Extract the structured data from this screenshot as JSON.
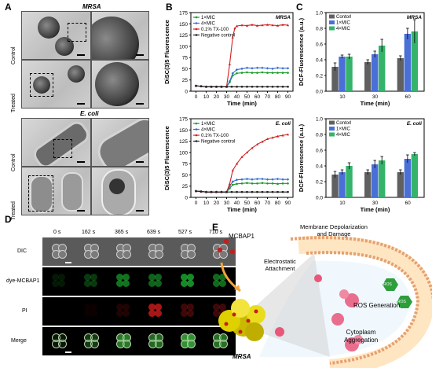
{
  "panels": {
    "A": "A",
    "B": "B",
    "C": "C",
    "D": "D",
    "E": "E"
  },
  "panelA": {
    "mrsa_title": "MRSA",
    "ecoli_title": "E. coli",
    "row_control": "Control",
    "row_treated": "Treated"
  },
  "panelD": {
    "times": [
      "0 s",
      "162 s",
      "365 s",
      "639 s",
      "527 s",
      "710 s"
    ],
    "rows": [
      "DIC",
      "dye-MCBAP1",
      "PI",
      "Merge"
    ]
  },
  "panelE": {
    "mcbap1": "MCBAP1",
    "membrane": "Membrane Depolarization\nand Damage",
    "electrostatic": "Electrostatic\nAttachment",
    "ros_gen": "ROS Generation",
    "ros1": "ROS",
    "ros2": "ROS",
    "cytoplasm": "Cytoplasm\nAggregation",
    "mrsa": "MRSA"
  },
  "colors": {
    "mic1": "#1a9c2a",
    "mic4": "#3b6fd1",
    "tx": "#d21f1f",
    "neg": "#222222",
    "bar_control": "#606060",
    "bar_1mic": "#4a6fd6",
    "bar_4mic": "#35b36a"
  },
  "chart_data": [
    {
      "type": "line",
      "tag": "MRSA",
      "xlabel": "Time (min)",
      "ylabel": "DiSC(3)5 Fluorescence",
      "xlim": [
        -5,
        95
      ],
      "ylim": [
        0,
        175
      ],
      "xticks": [
        0,
        10,
        20,
        30,
        40,
        50,
        60,
        70,
        80,
        90
      ],
      "yticks": [
        0,
        25,
        50,
        75,
        100,
        125,
        150,
        175
      ],
      "series": [
        {
          "name": "1×MIC",
          "color": "#1a9c2a",
          "marker": "circle",
          "x": [
            0,
            5,
            10,
            15,
            20,
            25,
            30,
            33,
            36,
            40,
            45,
            50,
            55,
            60,
            65,
            70,
            75,
            80,
            85,
            90
          ],
          "y": [
            12,
            11,
            10,
            10,
            10,
            10,
            10,
            20,
            35,
            40,
            41,
            42,
            41,
            41,
            42,
            41,
            41,
            41,
            41,
            41
          ]
        },
        {
          "name": "4×MIC",
          "color": "#3b6fd1",
          "marker": "diamond",
          "x": [
            0,
            5,
            10,
            15,
            20,
            25,
            30,
            33,
            36,
            40,
            45,
            50,
            55,
            60,
            65,
            70,
            75,
            80,
            85,
            90
          ],
          "y": [
            12,
            11,
            10,
            10,
            10,
            10,
            10,
            22,
            40,
            48,
            50,
            52,
            51,
            52,
            52,
            51,
            50,
            52,
            51,
            51
          ]
        },
        {
          "name": "0.1% TX-100",
          "color": "#d21f1f",
          "marker": "triangle",
          "x": [
            0,
            5,
            10,
            15,
            20,
            25,
            30,
            33,
            36,
            38,
            40,
            45,
            50,
            55,
            60,
            65,
            70,
            75,
            80,
            85,
            90
          ],
          "y": [
            12,
            11,
            10,
            10,
            10,
            10,
            10,
            60,
            120,
            140,
            145,
            147,
            146,
            148,
            146,
            147,
            148,
            147,
            146,
            148,
            147
          ]
        },
        {
          "name": "Negative control",
          "color": "#222222",
          "marker": "square",
          "x": [
            0,
            5,
            10,
            15,
            20,
            25,
            30,
            35,
            40,
            45,
            50,
            55,
            60,
            65,
            70,
            75,
            80,
            85,
            90
          ],
          "y": [
            12,
            11,
            10,
            10,
            10,
            10,
            10,
            10,
            10,
            10,
            10,
            10,
            10,
            10,
            10,
            10,
            10,
            10,
            10
          ]
        }
      ]
    },
    {
      "type": "line",
      "tag": "E. coli",
      "xlabel": "Time (min)",
      "ylabel": "DiSC(3)5 Fluorescence",
      "xlim": [
        -5,
        95
      ],
      "ylim": [
        0,
        175
      ],
      "xticks": [
        0,
        10,
        20,
        30,
        40,
        50,
        60,
        70,
        80,
        90
      ],
      "yticks": [
        0,
        25,
        50,
        75,
        100,
        125,
        150,
        175
      ],
      "series": [
        {
          "name": "1×MIC",
          "color": "#1a9c2a",
          "marker": "circle",
          "x": [
            0,
            5,
            10,
            15,
            20,
            25,
            30,
            33,
            36,
            40,
            45,
            50,
            55,
            60,
            65,
            70,
            75,
            80,
            85,
            90
          ],
          "y": [
            14,
            13,
            12,
            12,
            12,
            12,
            12,
            20,
            28,
            30,
            31,
            32,
            31,
            31,
            32,
            31,
            31,
            30,
            31,
            31
          ]
        },
        {
          "name": "4×MIC",
          "color": "#3b6fd1",
          "marker": "diamond",
          "x": [
            0,
            5,
            10,
            15,
            20,
            25,
            30,
            33,
            36,
            40,
            45,
            50,
            55,
            60,
            65,
            70,
            75,
            80,
            85,
            90
          ],
          "y": [
            14,
            13,
            12,
            12,
            12,
            12,
            12,
            25,
            35,
            39,
            40,
            41,
            40,
            41,
            41,
            40,
            40,
            41,
            40,
            40
          ]
        },
        {
          "name": "0.1% TX-100",
          "color": "#d21f1f",
          "marker": "triangle",
          "x": [
            0,
            5,
            10,
            15,
            20,
            25,
            30,
            33,
            36,
            40,
            45,
            50,
            55,
            60,
            65,
            70,
            75,
            80,
            85,
            90
          ],
          "y": [
            14,
            13,
            12,
            12,
            12,
            12,
            12,
            30,
            60,
            75,
            90,
            100,
            110,
            118,
            124,
            130,
            133,
            136,
            138,
            140
          ]
        },
        {
          "name": "Negative control",
          "color": "#222222",
          "marker": "square",
          "x": [
            0,
            5,
            10,
            15,
            20,
            25,
            30,
            35,
            40,
            45,
            50,
            55,
            60,
            65,
            70,
            75,
            80,
            85,
            90
          ],
          "y": [
            14,
            13,
            12,
            12,
            12,
            12,
            12,
            12,
            12,
            12,
            12,
            12,
            12,
            12,
            12,
            12,
            12,
            12,
            12
          ]
        }
      ]
    },
    {
      "type": "bar",
      "tag": "MRSA",
      "xlabel": "Time (min)",
      "ylabel": "DCF-Fluorescence (a.u.)",
      "categories": [
        "10",
        "30",
        "60"
      ],
      "ylim": [
        0,
        1.0
      ],
      "yticks": [
        0.0,
        0.2,
        0.4,
        0.6,
        0.8,
        1.0
      ],
      "series": [
        {
          "name": "Contorl",
          "color": "#606060",
          "values": [
            0.31,
            0.37,
            0.42
          ],
          "err": [
            0.05,
            0.03,
            0.03
          ]
        },
        {
          "name": "1×MIC",
          "color": "#4a6fd6",
          "values": [
            0.44,
            0.47,
            0.73
          ],
          "err": [
            0.02,
            0.04,
            0.07
          ]
        },
        {
          "name": "4×MIC",
          "color": "#35b36a",
          "values": [
            0.44,
            0.58,
            0.76
          ],
          "err": [
            0.03,
            0.08,
            0.15
          ]
        }
      ]
    },
    {
      "type": "bar",
      "tag": "E. coli",
      "xlabel": "Time (min)",
      "ylabel": "DCF-Fluorescence (a.u.)",
      "categories": [
        "10",
        "30",
        "60"
      ],
      "ylim": [
        0,
        1.0
      ],
      "yticks": [
        0.0,
        0.2,
        0.4,
        0.6,
        0.8,
        1.0
      ],
      "series": [
        {
          "name": "Contorl",
          "color": "#606060",
          "values": [
            0.29,
            0.32,
            0.32
          ],
          "err": [
            0.04,
            0.03,
            0.03
          ]
        },
        {
          "name": "1×MIC",
          "color": "#4a6fd6",
          "values": [
            0.32,
            0.42,
            0.49
          ],
          "err": [
            0.03,
            0.05,
            0.05
          ]
        },
        {
          "name": "4×MIC",
          "color": "#35b36a",
          "values": [
            0.4,
            0.47,
            0.55
          ],
          "err": [
            0.04,
            0.05,
            0.02
          ]
        }
      ]
    }
  ]
}
